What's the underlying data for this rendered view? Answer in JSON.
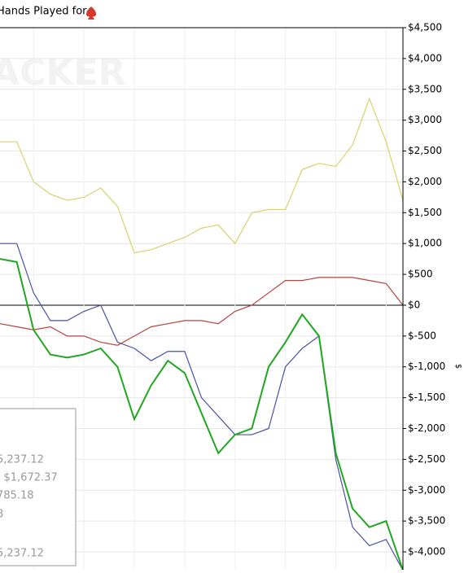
{
  "chart_data": {
    "type": "line",
    "title": "Hands Played for",
    "watermark": "ACKER",
    "y_axis_label": "$",
    "x": [
      0,
      1,
      2,
      3,
      4,
      5,
      6,
      7,
      8,
      9,
      10,
      11,
      12,
      13,
      14,
      15,
      16,
      17,
      18,
      19,
      20,
      21,
      22,
      23,
      24
    ],
    "xlim": [
      0,
      24
    ],
    "ylim": [
      -4290,
      4500
    ],
    "yticks": [
      {
        "value": 4500,
        "label": "$4,500"
      },
      {
        "value": 4000,
        "label": "$4,000"
      },
      {
        "value": 3500,
        "label": "$3,500"
      },
      {
        "value": 3000,
        "label": "$3,000"
      },
      {
        "value": 2500,
        "label": "$2,500"
      },
      {
        "value": 2000,
        "label": "$2,000"
      },
      {
        "value": 1500,
        "label": "$1,500"
      },
      {
        "value": 1000,
        "label": "$1,000"
      },
      {
        "value": 500,
        "label": "$500"
      },
      {
        "value": 0,
        "label": "$0"
      },
      {
        "value": -500,
        "label": "$-500"
      },
      {
        "value": -1000,
        "label": "$-1,000"
      },
      {
        "value": -1500,
        "label": "$-1,500"
      },
      {
        "value": -2000,
        "label": "$-2,000"
      },
      {
        "value": -2500,
        "label": "$-2,500"
      },
      {
        "value": -3000,
        "label": "$-3,000"
      },
      {
        "value": -3500,
        "label": "$-3,500"
      },
      {
        "value": -4000,
        "label": "$-4,000"
      }
    ],
    "grid": true,
    "series": [
      {
        "color": "#d8d26c",
        "values": [
          2650,
          2650,
          2000,
          1800,
          1700,
          1750,
          1900,
          1600,
          850,
          900,
          1000,
          1100,
          1250,
          1300,
          1000,
          1500,
          1550,
          1550,
          2200,
          2300,
          2250,
          2600,
          3350,
          2650,
          1700
        ]
      },
      {
        "color": "#4b4fa8",
        "values": [
          1000,
          1000,
          200,
          -250,
          -250,
          -100,
          0,
          -600,
          -700,
          -900,
          -750,
          -750,
          -1500,
          -1800,
          -2100,
          -2100,
          -2000,
          -1000,
          -700,
          -500,
          -2500,
          -3600,
          -3900,
          -3800,
          -4300
        ]
      },
      {
        "color": "#b5453b",
        "values": [
          -300,
          -350,
          -400,
          -350,
          -500,
          -500,
          -600,
          -650,
          -500,
          -350,
          -300,
          -250,
          -250,
          -300,
          -100,
          0,
          200,
          400,
          400,
          450,
          450,
          450,
          400,
          350,
          0
        ]
      },
      {
        "color": "#1fa81f",
        "values": [
          750,
          700,
          -400,
          -800,
          -850,
          -800,
          -700,
          -1000,
          -1850,
          -1300,
          -900,
          -1100,
          -1750,
          -2400,
          -2100,
          -2000,
          -1000,
          -600,
          -150,
          -500,
          -2400,
          -3300,
          -3600,
          -3500,
          -4300
        ]
      }
    ],
    "legend_lines": [
      "5,237.12",
      ": $1,672.37",
      "785.18",
      "8",
      "5,237.12"
    ]
  }
}
